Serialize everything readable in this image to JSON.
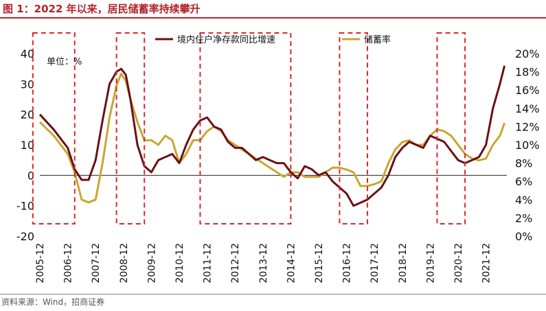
{
  "title": "图 1：2022 年以来，居民储蓄率持续攀升",
  "source": "资料来源：Wind，招商证券",
  "chart_data": {
    "type": "line",
    "unit_label": "单位：%",
    "x_tick_labels": [
      "2005-12",
      "2006-12",
      "2007-12",
      "2008-12",
      "2009-12",
      "2010-12",
      "2011-12",
      "2012-12",
      "2013-12",
      "2014-12",
      "2015-12",
      "2016-12",
      "2017-12",
      "2018-12",
      "2019-12",
      "2020-12",
      "2021-12"
    ],
    "y_left": {
      "min": -20,
      "max": 40,
      "ticks": [
        40,
        30,
        20,
        10,
        0,
        -10,
        -20
      ]
    },
    "y_right": {
      "min": 0,
      "max": 20,
      "ticks": [
        "20%",
        "18%",
        "16%",
        "14%",
        "12%",
        "10%",
        "8%",
        "6%",
        "4%",
        "2%",
        "0%"
      ]
    },
    "colors": {
      "deposit": "#6b0f16",
      "savings": "#c8a632",
      "highlight": "#d9262b",
      "title": "#b4232a"
    },
    "series": [
      {
        "name": "境内住户净存款同比增速",
        "axis": "left",
        "points": [
          [
            "2005-12",
            20
          ],
          [
            "2006-06",
            15
          ],
          [
            "2006-12",
            9
          ],
          [
            "2007-03",
            2
          ],
          [
            "2007-06",
            -1.5
          ],
          [
            "2007-09",
            -1.5
          ],
          [
            "2007-12",
            5
          ],
          [
            "2008-03",
            18
          ],
          [
            "2008-06",
            30
          ],
          [
            "2008-09",
            34
          ],
          [
            "2008-11",
            35
          ],
          [
            "2009-01",
            33
          ],
          [
            "2009-03",
            25
          ],
          [
            "2009-06",
            10
          ],
          [
            "2009-09",
            3
          ],
          [
            "2009-12",
            1
          ],
          [
            "2010-03",
            5
          ],
          [
            "2010-06",
            6
          ],
          [
            "2010-09",
            7
          ],
          [
            "2010-12",
            4
          ],
          [
            "2011-03",
            10
          ],
          [
            "2011-06",
            15
          ],
          [
            "2011-09",
            18
          ],
          [
            "2011-12",
            19
          ],
          [
            "2012-03",
            16
          ],
          [
            "2012-06",
            15
          ],
          [
            "2012-09",
            11
          ],
          [
            "2012-12",
            9
          ],
          [
            "2013-03",
            9
          ],
          [
            "2013-06",
            7
          ],
          [
            "2013-09",
            5
          ],
          [
            "2013-12",
            6
          ],
          [
            "2014-03",
            5
          ],
          [
            "2014-06",
            4
          ],
          [
            "2014-09",
            4
          ],
          [
            "2014-12",
            1
          ],
          [
            "2015-03",
            -1
          ],
          [
            "2015-06",
            3
          ],
          [
            "2015-09",
            2
          ],
          [
            "2015-12",
            0
          ],
          [
            "2016-03",
            1
          ],
          [
            "2016-06",
            -2
          ],
          [
            "2016-09",
            -4
          ],
          [
            "2016-12",
            -6
          ],
          [
            "2017-03",
            -10
          ],
          [
            "2017-06",
            -9
          ],
          [
            "2017-09",
            -8
          ],
          [
            "2017-12",
            -6
          ],
          [
            "2018-03",
            -4
          ],
          [
            "2018-06",
            0
          ],
          [
            "2018-09",
            6
          ],
          [
            "2018-12",
            9
          ],
          [
            "2019-03",
            11
          ],
          [
            "2019-06",
            10
          ],
          [
            "2019-09",
            9
          ],
          [
            "2019-12",
            13
          ],
          [
            "2020-03",
            12
          ],
          [
            "2020-06",
            11
          ],
          [
            "2020-09",
            8
          ],
          [
            "2020-12",
            5
          ],
          [
            "2021-03",
            4
          ],
          [
            "2021-06",
            5
          ],
          [
            "2021-09",
            6
          ],
          [
            "2021-12",
            10
          ],
          [
            "2022-03",
            22
          ],
          [
            "2022-06",
            30
          ],
          [
            "2022-08",
            36
          ]
        ]
      },
      {
        "name": "储蓄率",
        "axis": "right",
        "points": [
          [
            "2005-12",
            12.5
          ],
          [
            "2006-06",
            11
          ],
          [
            "2006-12",
            9
          ],
          [
            "2007-03",
            7
          ],
          [
            "2007-06",
            4
          ],
          [
            "2007-09",
            3.7
          ],
          [
            "2007-12",
            4
          ],
          [
            "2008-03",
            8
          ],
          [
            "2008-06",
            13
          ],
          [
            "2008-09",
            16.5
          ],
          [
            "2008-11",
            17.8
          ],
          [
            "2009-01",
            17
          ],
          [
            "2009-03",
            15
          ],
          [
            "2009-06",
            12.5
          ],
          [
            "2009-09",
            10.5
          ],
          [
            "2009-12",
            10.5
          ],
          [
            "2010-03",
            10
          ],
          [
            "2010-06",
            11
          ],
          [
            "2010-09",
            10.5
          ],
          [
            "2010-12",
            8
          ],
          [
            "2011-03",
            9
          ],
          [
            "2011-06",
            10.5
          ],
          [
            "2011-09",
            10.5
          ],
          [
            "2011-12",
            11.5
          ],
          [
            "2012-03",
            12
          ],
          [
            "2012-06",
            11.5
          ],
          [
            "2012-09",
            10.5
          ],
          [
            "2012-12",
            10
          ],
          [
            "2013-03",
            9.5
          ],
          [
            "2013-06",
            9
          ],
          [
            "2013-09",
            8.5
          ],
          [
            "2013-12",
            8
          ],
          [
            "2014-03",
            7.5
          ],
          [
            "2014-06",
            7
          ],
          [
            "2014-09",
            6.5
          ],
          [
            "2014-12",
            7
          ],
          [
            "2015-03",
            7
          ],
          [
            "2015-06",
            6.5
          ],
          [
            "2015-09",
            6.5
          ],
          [
            "2015-12",
            6.5
          ],
          [
            "2016-03",
            7
          ],
          [
            "2016-06",
            7.5
          ],
          [
            "2016-09",
            7.5
          ],
          [
            "2016-12",
            7.3
          ],
          [
            "2017-03",
            7
          ],
          [
            "2017-06",
            5.5
          ],
          [
            "2017-09",
            5.5
          ],
          [
            "2017-12",
            5.7
          ],
          [
            "2018-03",
            6
          ],
          [
            "2018-06",
            8
          ],
          [
            "2018-09",
            9.5
          ],
          [
            "2018-12",
            10.3
          ],
          [
            "2019-03",
            10.5
          ],
          [
            "2019-06",
            10
          ],
          [
            "2019-09",
            10
          ],
          [
            "2019-12",
            11
          ],
          [
            "2020-03",
            11.7
          ],
          [
            "2020-06",
            11.5
          ],
          [
            "2020-09",
            11
          ],
          [
            "2020-12",
            10
          ],
          [
            "2021-03",
            9
          ],
          [
            "2021-06",
            8.5
          ],
          [
            "2021-09",
            8.3
          ],
          [
            "2021-12",
            8.5
          ],
          [
            "2022-03",
            10
          ],
          [
            "2022-06",
            11
          ],
          [
            "2022-08",
            12.4
          ]
        ]
      }
    ],
    "highlight_ranges": [
      [
        "2005-09",
        "2007-03"
      ],
      [
        "2008-09",
        "2009-09"
      ],
      [
        "2011-09",
        "2014-12"
      ],
      [
        "2016-09",
        "2017-09"
      ],
      [
        "2020-03",
        "2021-03"
      ]
    ]
  }
}
